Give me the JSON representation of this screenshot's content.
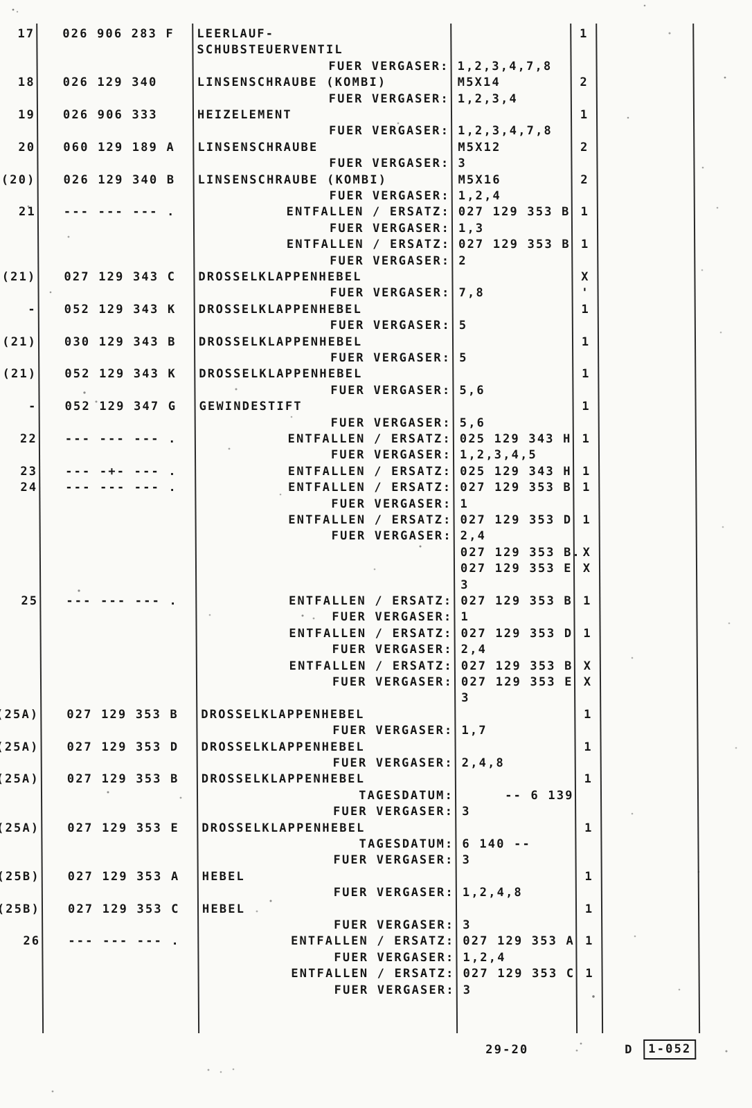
{
  "colors": {
    "ink": "#161616",
    "paper": "#fafaf7"
  },
  "footer": {
    "page_number": "29-20",
    "section_letter": "D",
    "page_code": "1-052"
  },
  "table": {
    "columns": [
      "position",
      "part_number",
      "description",
      "remark_value",
      "quantity"
    ],
    "lines": [
      {
        "pos": "17",
        "part": "026 906 283 F",
        "desc": "LEERLAUF-",
        "qty": "1"
      },
      {
        "desc": "SCHUBSTEUERVENTIL"
      },
      {
        "lbl": "FUER VERGASER:",
        "val": "1,2,3,4,7,8"
      },
      {
        "pos": "18",
        "part": "026 129 340",
        "desc": "LINSENSCHRAUBE (KOMBI)",
        "val": "M5X14",
        "qty": "2"
      },
      {
        "lbl": "FUER VERGASER:",
        "val": "1,2,3,4"
      },
      {
        "pos": "19",
        "part": "026 906 333",
        "desc": "HEIZELEMENT",
        "qty": "1"
      },
      {
        "lbl": "FUER VERGASER:",
        "val": "1,2,3,4,7,8"
      },
      {
        "pos": "20",
        "part": "060 129 189 A",
        "desc": "LINSENSCHRAUBE",
        "val": "M5X12",
        "qty": "2"
      },
      {
        "lbl": "FUER VERGASER:",
        "val": "3"
      },
      {
        "pos": "(20)",
        "part": "026 129 340 B",
        "desc": "LINSENSCHRAUBE (KOMBI)",
        "val": "M5X16",
        "qty": "2"
      },
      {
        "lbl": "FUER VERGASER:",
        "val": "1,2,4"
      },
      {
        "pos": "21",
        "part": "--- --- --- .",
        "lbl": "ENTFALLEN / ERSATZ:",
        "val": "027 129 353 B",
        "qty": "1"
      },
      {
        "lbl": "FUER VERGASER:",
        "val": "1,3"
      },
      {
        "lbl": "ENTFALLEN / ERSATZ:",
        "val": "027 129 353 B",
        "qty": "1"
      },
      {
        "lbl": "FUER VERGASER:",
        "val": "2"
      },
      {
        "pos": "(21)",
        "part": "027 129 343 C",
        "desc": "DROSSELKLAPPENHEBEL",
        "qty": "X"
      },
      {
        "lbl": "FUER VERGASER:",
        "val": "7,8",
        "qty": "'"
      },
      {
        "pos": "-",
        "part": "052 129 343 K",
        "desc": "DROSSELKLAPPENHEBEL",
        "qty": "1"
      },
      {
        "lbl": "FUER VERGASER:",
        "val": "5"
      },
      {
        "pos": "(21)",
        "part": "030 129 343 B",
        "desc": "DROSSELKLAPPENHEBEL",
        "qty": "1"
      },
      {
        "lbl": "FUER VERGASER:",
        "val": "5"
      },
      {
        "pos": "(21)",
        "part": "052 129 343 K",
        "desc": "DROSSELKLAPPENHEBEL",
        "qty": "1"
      },
      {
        "lbl": "FUER VERGASER:",
        "val": "5,6"
      },
      {
        "pos": "-",
        "part": "052 129 347 G",
        "desc": "GEWINDESTIFT",
        "qty": "1"
      },
      {
        "lbl": "FUER VERGASER:",
        "val": "5,6"
      },
      {
        "pos": "22",
        "part": "--- --- --- .",
        "lbl": "ENTFALLEN / ERSATZ:",
        "val": "025 129 343 H",
        "qty": "1"
      },
      {
        "lbl": "FUER VERGASER:",
        "val": "1,2,3,4,5"
      },
      {
        "pos": "23",
        "part": "--- -+- --- .",
        "lbl": "ENTFALLEN / ERSATZ:",
        "val": "025 129 343 H",
        "qty": "1"
      },
      {
        "pos": "24",
        "part": "--- --- --- .",
        "lbl": "ENTFALLEN / ERSATZ:",
        "val": "027 129 353 B",
        "qty": "1"
      },
      {
        "lbl": "FUER VERGASER:",
        "val": "1"
      },
      {
        "lbl": "ENTFALLEN / ERSATZ:",
        "val": "027 129 353 D",
        "qty": "1"
      },
      {
        "lbl": "FUER VERGASER:",
        "val": "2,4"
      },
      {
        "val": "027 129 353 B.",
        "qty": "X"
      },
      {
        "val": "027 129 353 E",
        "qty": "X"
      },
      {
        "val": "3"
      },
      {
        "pos": "25",
        "part": "--- --- --- .",
        "lbl": "ENTFALLEN / ERSATZ:",
        "val": "027 129 353 B",
        "qty": "1"
      },
      {
        "lbl": "FUER VERGASER:",
        "val": "1"
      },
      {
        "lbl": "ENTFALLEN / ERSATZ:",
        "val": "027 129 353 D",
        "qty": "1"
      },
      {
        "lbl": "FUER VERGASER:",
        "val": "2,4"
      },
      {
        "lbl": "ENTFALLEN / ERSATZ:",
        "val": "027 129 353 B",
        "qty": "X"
      },
      {
        "lbl": "FUER VERGASER:",
        "val": "027 129 353 E",
        "qty": "X"
      },
      {
        "val": "3"
      },
      {
        "pos": "(25A)",
        "part": "027 129 353 B",
        "desc": "DROSSELKLAPPENHEBEL",
        "qty": "1"
      },
      {
        "lbl": "FUER VERGASER:",
        "val": "1,7"
      },
      {
        "pos": "(25A)",
        "part": "027 129 353 D",
        "desc": "DROSSELKLAPPENHEBEL",
        "qty": "1"
      },
      {
        "lbl": "FUER VERGASER:",
        "val": "2,4,8"
      },
      {
        "pos": "(25A)",
        "part": "027 129 353 B",
        "desc": "DROSSELKLAPPENHEBEL",
        "qty": "1"
      },
      {
        "lbl": "TAGESDATUM:",
        "val": "     -- 6 139"
      },
      {
        "lbl": "FUER VERGASER:",
        "val": "3"
      },
      {
        "pos": "(25A)",
        "part": "027 129 353 E",
        "desc": "DROSSELKLAPPENHEBEL",
        "qty": "1"
      },
      {
        "lbl": "TAGESDATUM:",
        "val": "6 140 --"
      },
      {
        "lbl": "FUER VERGASER:",
        "val": "3"
      },
      {
        "pos": "(25B)",
        "part": "027 129 353 A",
        "desc": "HEBEL",
        "qty": "1"
      },
      {
        "lbl": "FUER VERGASER:",
        "val": "1,2,4,8"
      },
      {
        "pos": "(25B)",
        "part": "027 129 353 C",
        "desc": "HEBEL",
        "qty": "1"
      },
      {
        "lbl": "FUER VERGASER:",
        "val": "3"
      },
      {
        "pos": "26",
        "part": "--- --- --- .",
        "lbl": "ENTFALLEN / ERSATZ:",
        "val": "027 129 353 A",
        "qty": "1"
      },
      {
        "lbl": "FUER VERGASER:",
        "val": "1,2,4"
      },
      {
        "lbl": "ENTFALLEN / ERSATZ:",
        "val": "027 129 353 C",
        "qty": "1"
      },
      {
        "lbl": "FUER VERGASER:",
        "val": "3"
      }
    ]
  }
}
